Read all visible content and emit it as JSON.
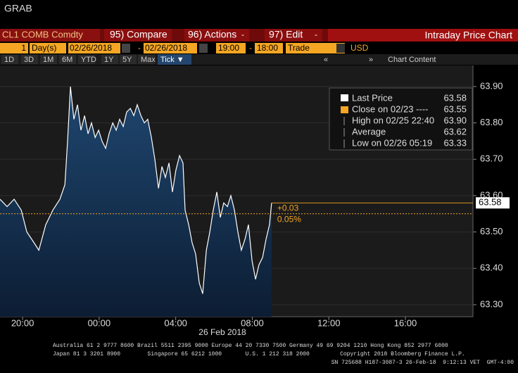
{
  "header": {
    "title": "GRAB"
  },
  "toolbar": {
    "security": "CL1 COMB Comdty",
    "menus": [
      "95) Compare",
      "96) Actions",
      "97) Edit"
    ],
    "view": "Intraday Price Chart",
    "period_count": "1",
    "period_unit": "Day(s)",
    "start_date": "02/26/2018",
    "end_date": "02/26/2018",
    "start_time": "19:00",
    "end_time": "18:00",
    "event": "Trade",
    "currency": "USD",
    "ranges": [
      "1D",
      "3D",
      "1M",
      "6M",
      "YTD",
      "1Y",
      "5Y",
      "Max"
    ],
    "interval": "Tick ▼",
    "chart_content": "Chart Content"
  },
  "chart_data": {
    "type": "line",
    "x": [
      18.82,
      19.19,
      19.56,
      19.93,
      20.22,
      20.48,
      20.85,
      21.21,
      21.58,
      21.95,
      22.21,
      22.35,
      22.5,
      22.68,
      22.87,
      23.05,
      23.24,
      23.42,
      23.6,
      23.79,
      23.97,
      24.15,
      24.34,
      24.52,
      24.71,
      24.89,
      25.07,
      25.26,
      25.44,
      25.63,
      25.81,
      25.99,
      26.18,
      26.36,
      26.54,
      26.73,
      26.91,
      27.1,
      27.28,
      27.46,
      27.65,
      27.83,
      28.01,
      28.2,
      28.38,
      28.49,
      28.68,
      28.86,
      29.04,
      29.23,
      29.41,
      29.6,
      29.78,
      29.96,
      30.15,
      30.33,
      30.51,
      30.7,
      30.88,
      31.07,
      31.25,
      31.43,
      31.62,
      31.8,
      31.99,
      32.17,
      32.35,
      32.54,
      32.72,
      32.9,
      33.01
    ],
    "series": [
      {
        "name": "Last Price",
        "color": "#ffffff",
        "values": [
          63.59,
          63.57,
          63.59,
          63.56,
          63.5,
          63.48,
          63.45,
          63.52,
          63.56,
          63.59,
          63.63,
          63.75,
          63.9,
          63.81,
          63.85,
          63.78,
          63.82,
          63.77,
          63.8,
          63.76,
          63.78,
          63.75,
          63.73,
          63.77,
          63.8,
          63.78,
          63.81,
          63.79,
          63.83,
          63.84,
          63.82,
          63.85,
          63.82,
          63.8,
          63.81,
          63.76,
          63.7,
          63.62,
          63.68,
          63.65,
          63.69,
          63.61,
          63.67,
          63.71,
          63.69,
          63.56,
          63.52,
          63.47,
          63.44,
          63.36,
          63.33,
          63.45,
          63.5,
          63.56,
          63.61,
          63.54,
          63.58,
          63.57,
          63.6,
          63.56,
          63.5,
          63.45,
          63.48,
          63.52,
          63.42,
          63.37,
          63.41,
          63.43,
          63.48,
          63.52,
          63.58
        ]
      }
    ],
    "stats": [
      {
        "name": "Close on 02/23 ----",
        "value": 63.55,
        "color": "#f5a623"
      },
      {
        "name": "High on 02/25 22:40",
        "value": 63.9,
        "label": "63.90"
      },
      {
        "name": "Average",
        "value": 63.62
      },
      {
        "name": "Low on 02/26 05:19",
        "value": 63.33
      }
    ],
    "annotations": [
      "+0.03",
      "0.05%"
    ],
    "xlabel": "26 Feb 2018",
    "xlim": [
      18.82,
      43.53
    ],
    "xticks": [
      {
        "value": 20,
        "label": "20:00"
      },
      {
        "value": 24,
        "label": "00:00"
      },
      {
        "value": 28,
        "label": "04:00"
      },
      {
        "value": 32,
        "label": "08:00"
      },
      {
        "value": 36,
        "label": "12:00"
      },
      {
        "value": 40,
        "label": "16:00"
      }
    ],
    "ylim": [
      63.267,
      63.958
    ],
    "yticks": [
      {
        "value": 63.3,
        "label": "63.30"
      },
      {
        "value": 63.4,
        "label": "63.40"
      },
      {
        "value": 63.5,
        "label": "63.50"
      },
      {
        "value": 63.6,
        "label": "63.60"
      },
      {
        "value": 63.7,
        "label": "63.70"
      },
      {
        "value": 63.8,
        "label": "63.80"
      },
      {
        "value": 63.9,
        "label": "63.90"
      }
    ],
    "grid": true
  },
  "footer": {
    "lines": [
      "Australia 61 2 9777 8600 Brazil 5511 2395 9000 Europe 44 20 7330 7500 Germany 49 69 9204 1210 Hong Kong 852 2977 6000",
      "Japan 81 3 3201 8900        Singapore 65 6212 1000       U.S. 1 212 318 2000         Copyright 2018 Bloomberg Finance L.P.",
      "SN 725688 H187-3087-3 26-Feb-18  9:12:13 VET  GMT-4:00"
    ]
  }
}
